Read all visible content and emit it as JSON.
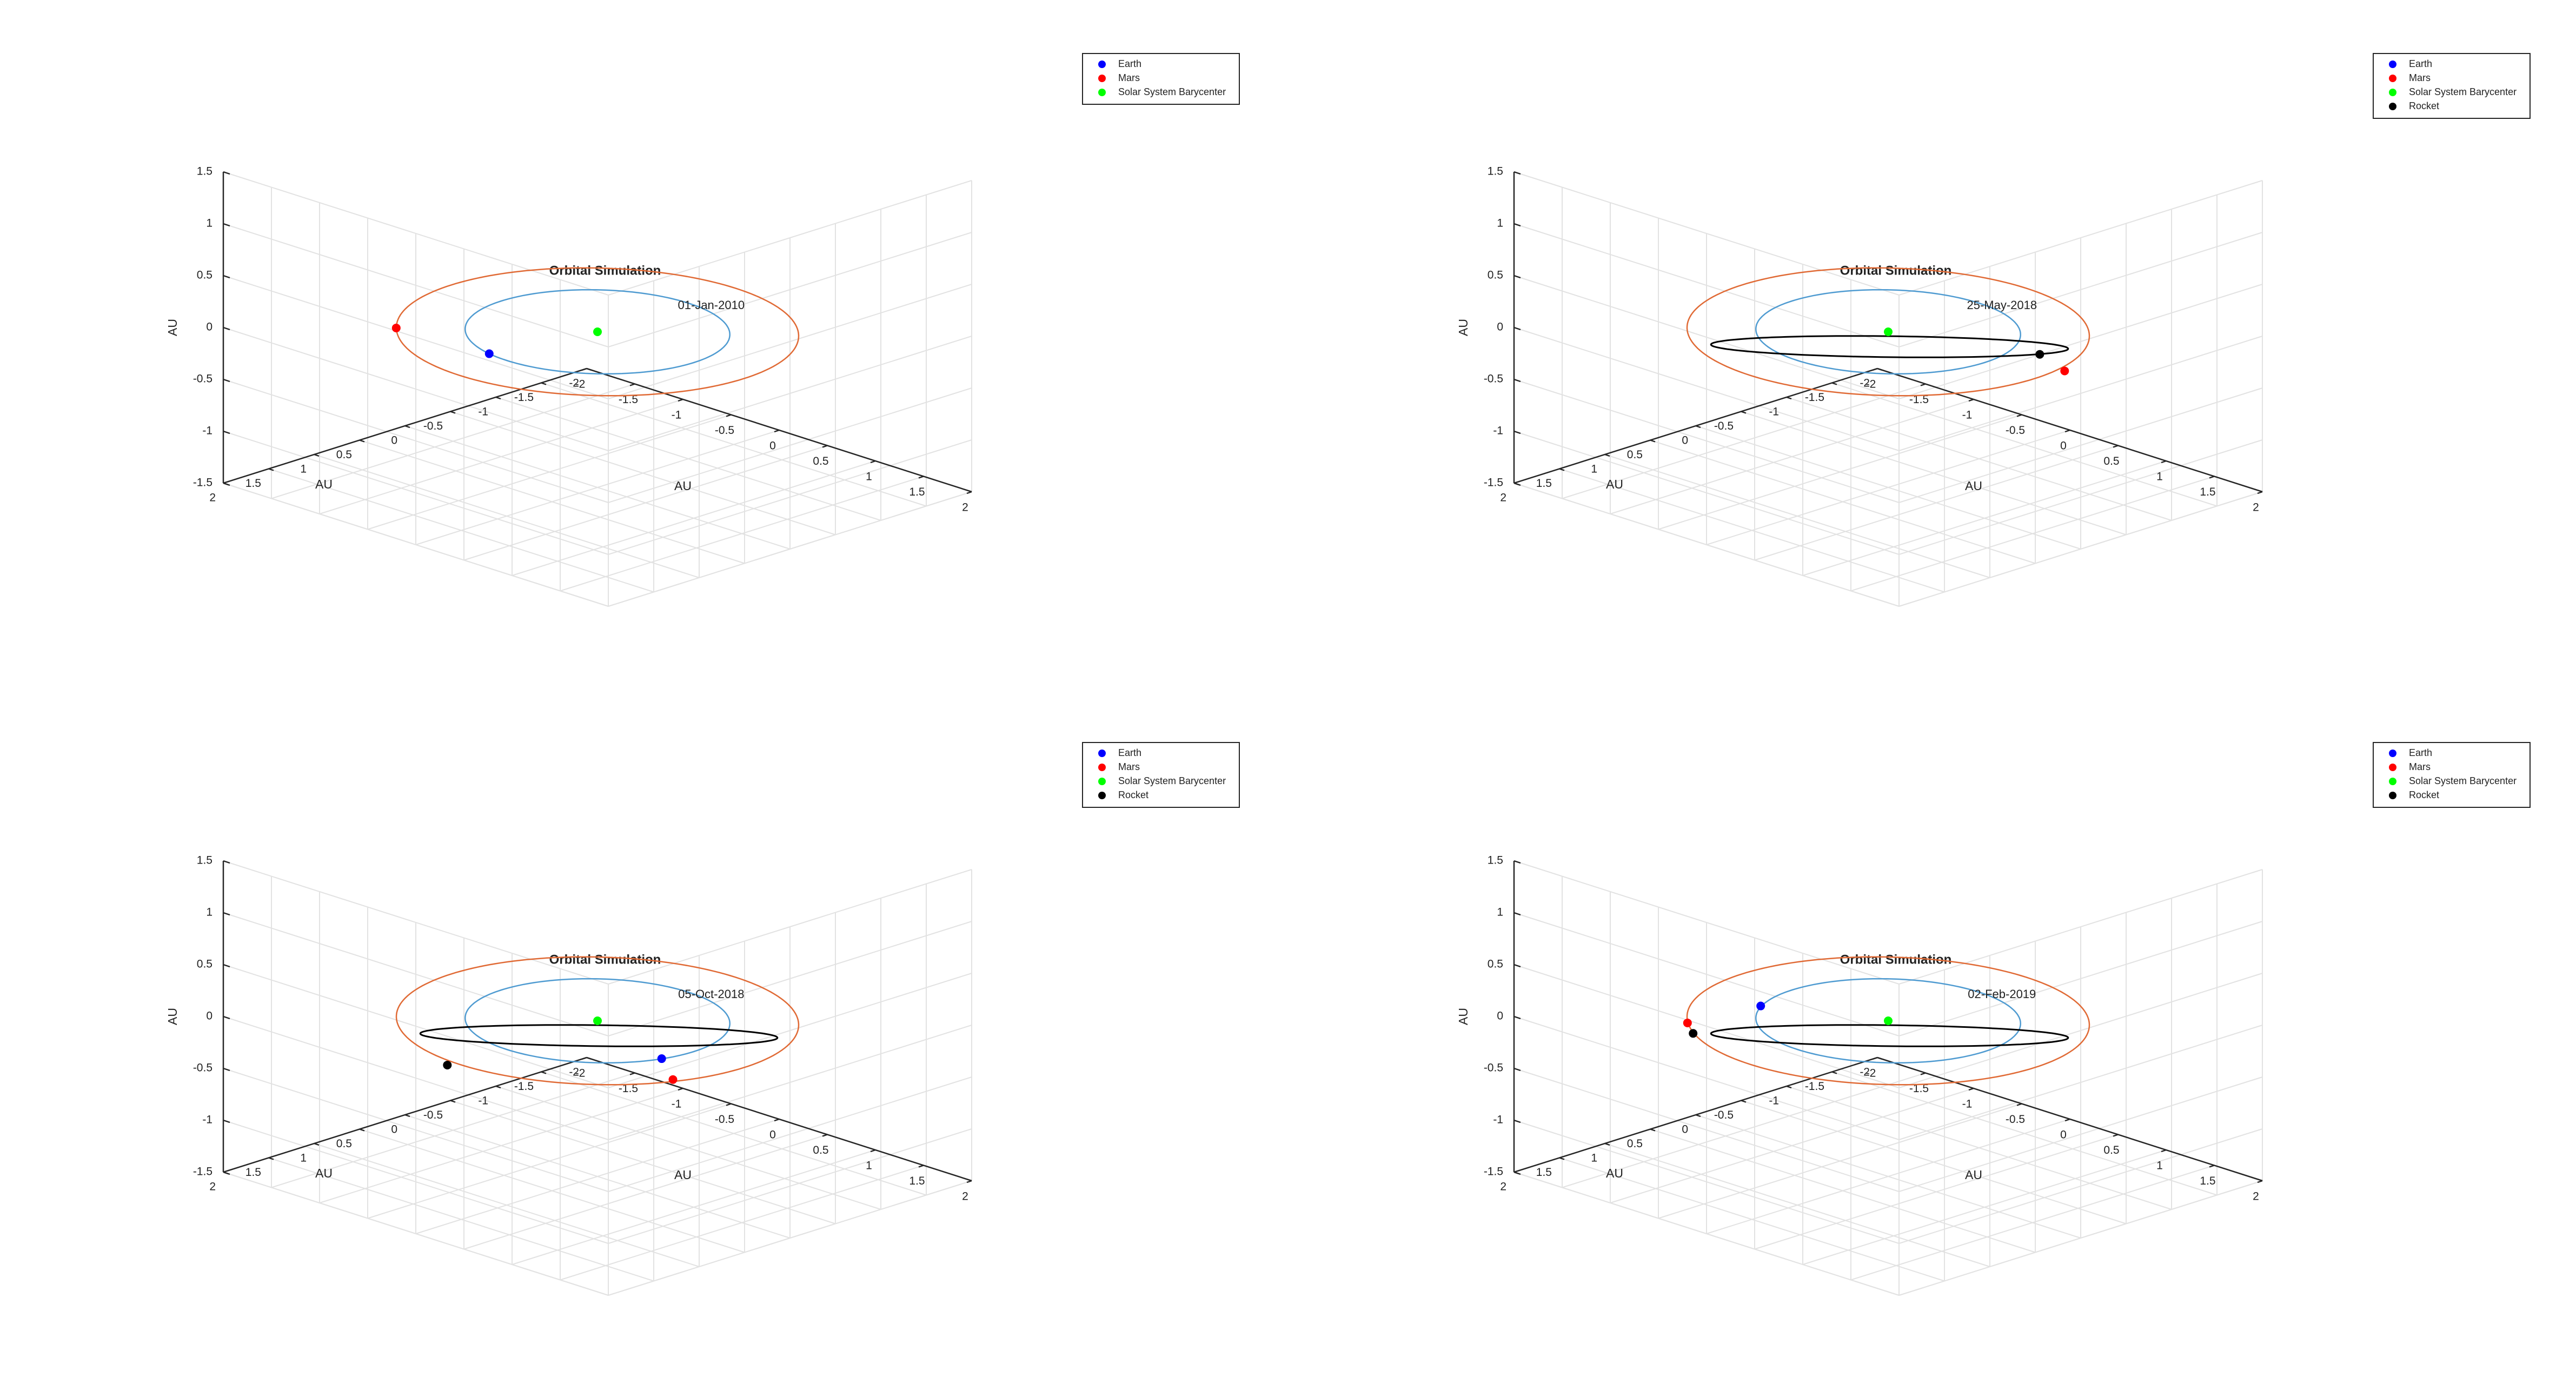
{
  "chart_data": [
    {
      "type": "scatter",
      "title": "Orbital Simulation",
      "xlabel": "AU",
      "ylabel": "AU",
      "zlabel": "AU",
      "xlim": [
        -2,
        2
      ],
      "ylim": [
        -2,
        2
      ],
      "zlim": [
        -1.5,
        1.5
      ],
      "x_ticks": [
        "-2",
        "-1.5",
        "-1",
        "-0.5",
        "0",
        "0.5",
        "1",
        "1.5",
        "2"
      ],
      "y_ticks": [
        "-2",
        "-1.5",
        "-1",
        "-0.5",
        "0",
        "0.5",
        "1",
        "1.5",
        "2"
      ],
      "z_ticks": [
        "-1.5",
        "-1",
        "-0.5",
        "0",
        "0.5",
        "1",
        "1.5"
      ],
      "grid": true,
      "legend_position": "top-right",
      "legend": [
        "Earth",
        "Mars",
        "Solar System Barycenter"
      ],
      "date_label": "01-Jan-2010",
      "orbits": [
        {
          "name": "Earth orbit",
          "color": "#4f9bd1",
          "radius": 1.0
        },
        {
          "name": "Mars orbit",
          "color": "#e06a35",
          "radius": 1.52
        }
      ],
      "points": [
        {
          "name": "Earth",
          "color": "#0000ff",
          "x": -0.2,
          "y": 0.98,
          "z": 0
        },
        {
          "name": "Mars",
          "color": "#ff0000",
          "x": -1.1,
          "y": 1.05,
          "z": 0
        },
        {
          "name": "Solar System Barycenter",
          "color": "#00ff00",
          "x": 0,
          "y": 0,
          "z": 0
        }
      ]
    },
    {
      "type": "scatter",
      "title": "Orbital Simulation",
      "xlabel": "AU",
      "ylabel": "AU",
      "zlabel": "AU",
      "xlim": [
        -2,
        2
      ],
      "ylim": [
        -2,
        2
      ],
      "zlim": [
        -1.5,
        1.5
      ],
      "x_ticks": [
        "-2",
        "-1.5",
        "-1",
        "-0.5",
        "0",
        "0.5",
        "1",
        "1.5",
        "2"
      ],
      "y_ticks": [
        "-2",
        "-1.5",
        "-1",
        "-0.5",
        "0",
        "0.5",
        "1",
        "1.5",
        "2"
      ],
      "z_ticks": [
        "-1.5",
        "-1",
        "-0.5",
        "0",
        "0.5",
        "1",
        "1.5"
      ],
      "grid": true,
      "legend_position": "top-right",
      "legend": [
        "Earth",
        "Mars",
        "Solar System Barycenter",
        "Rocket"
      ],
      "date_label": "25-May-2018",
      "orbits": [
        {
          "name": "Earth orbit",
          "color": "#4f9bd1",
          "radius": 1.0
        },
        {
          "name": "Mars orbit",
          "color": "#e06a35",
          "radius": 1.52
        },
        {
          "name": "Rocket trajectory",
          "color": "#000000",
          "ellipse": [
            -1.1,
            1.6,
            1.6,
            -1.1
          ]
        }
      ],
      "points": [
        {
          "name": "Rocket",
          "color": "#000000",
          "x": 1.15,
          "y": -0.45,
          "z": 0
        },
        {
          "name": "Mars",
          "color": "#ff0000",
          "x": 1.55,
          "y": -0.3,
          "z": 0
        },
        {
          "name": "Solar System Barycenter",
          "color": "#00ff00",
          "x": 0,
          "y": 0,
          "z": 0
        }
      ]
    },
    {
      "type": "scatter",
      "title": "Orbital Simulation",
      "xlabel": "AU",
      "ylabel": "AU",
      "zlabel": "AU",
      "xlim": [
        -2,
        2
      ],
      "ylim": [
        -2,
        2
      ],
      "zlim": [
        -1.5,
        1.5
      ],
      "x_ticks": [
        "-2",
        "-1.5",
        "-1",
        "-0.5",
        "0",
        "0.5",
        "1",
        "1.5",
        "2"
      ],
      "y_ticks": [
        "-2",
        "-1.5",
        "-1",
        "-0.5",
        "0",
        "0.5",
        "1",
        "1.5",
        "2"
      ],
      "z_ticks": [
        "-1.5",
        "-1",
        "-0.5",
        "0",
        "0.5",
        "1",
        "1.5"
      ],
      "grid": true,
      "legend_position": "top-right",
      "legend": [
        "Earth",
        "Mars",
        "Solar System Barycenter",
        "Rocket"
      ],
      "date_label": "05-Oct-2018",
      "orbits": [
        {
          "name": "Earth orbit",
          "color": "#4f9bd1",
          "radius": 1.0
        },
        {
          "name": "Mars orbit",
          "color": "#e06a35",
          "radius": 1.52
        },
        {
          "name": "Rocket trajectory",
          "color": "#000000",
          "ellipse": [
            -1.1,
            1.6,
            1.6,
            -1.1
          ]
        }
      ],
      "points": [
        {
          "name": "Earth",
          "color": "#0000ff",
          "x": 0.95,
          "y": 0.3,
          "z": 0
        },
        {
          "name": "Mars",
          "color": "#ff0000",
          "x": 1.35,
          "y": 0.6,
          "z": 0
        },
        {
          "name": "Rocket",
          "color": "#000000",
          "x": -0.05,
          "y": 1.6,
          "z": 0
        },
        {
          "name": "Solar System Barycenter",
          "color": "#00ff00",
          "x": 0,
          "y": 0,
          "z": 0
        }
      ]
    },
    {
      "type": "scatter",
      "title": "Orbital Simulation",
      "xlabel": "AU",
      "ylabel": "AU",
      "zlabel": "AU",
      "xlim": [
        -2,
        2
      ],
      "ylim": [
        -2,
        2
      ],
      "zlim": [
        -1.5,
        1.5
      ],
      "x_ticks": [
        "-2",
        "-1.5",
        "-1",
        "-0.5",
        "0",
        "0.5",
        "1",
        "1.5",
        "2"
      ],
      "y_ticks": [
        "-2",
        "-1.5",
        "-1",
        "-0.5",
        "0",
        "0.5",
        "1",
        "1.5",
        "2"
      ],
      "z_ticks": [
        "-1.5",
        "-1",
        "-0.5",
        "0",
        "0.5",
        "1",
        "1.5"
      ],
      "grid": true,
      "legend_position": "top-right",
      "legend": [
        "Earth",
        "Mars",
        "Solar System Barycenter",
        "Rocket"
      ],
      "date_label": "02-Feb-2019",
      "orbits": [
        {
          "name": "Earth orbit",
          "color": "#4f9bd1",
          "radius": 1.0
        },
        {
          "name": "Mars orbit",
          "color": "#e06a35",
          "radius": 1.52
        },
        {
          "name": "Rocket trajectory",
          "color": "#000000",
          "ellipse": [
            -1.1,
            1.6,
            1.6,
            -1.1
          ]
        }
      ],
      "points": [
        {
          "name": "Earth",
          "color": "#0000ff",
          "x": -0.9,
          "y": 0.45,
          "z": 0
        },
        {
          "name": "Mars",
          "color": "#ff0000",
          "x": -1.0,
          "y": 1.15,
          "z": 0
        },
        {
          "name": "Rocket",
          "color": "#000000",
          "x": -0.8,
          "y": 1.3,
          "z": 0
        },
        {
          "name": "Solar System Barycenter",
          "color": "#00ff00",
          "x": 0,
          "y": 0,
          "z": 0
        }
      ]
    }
  ]
}
